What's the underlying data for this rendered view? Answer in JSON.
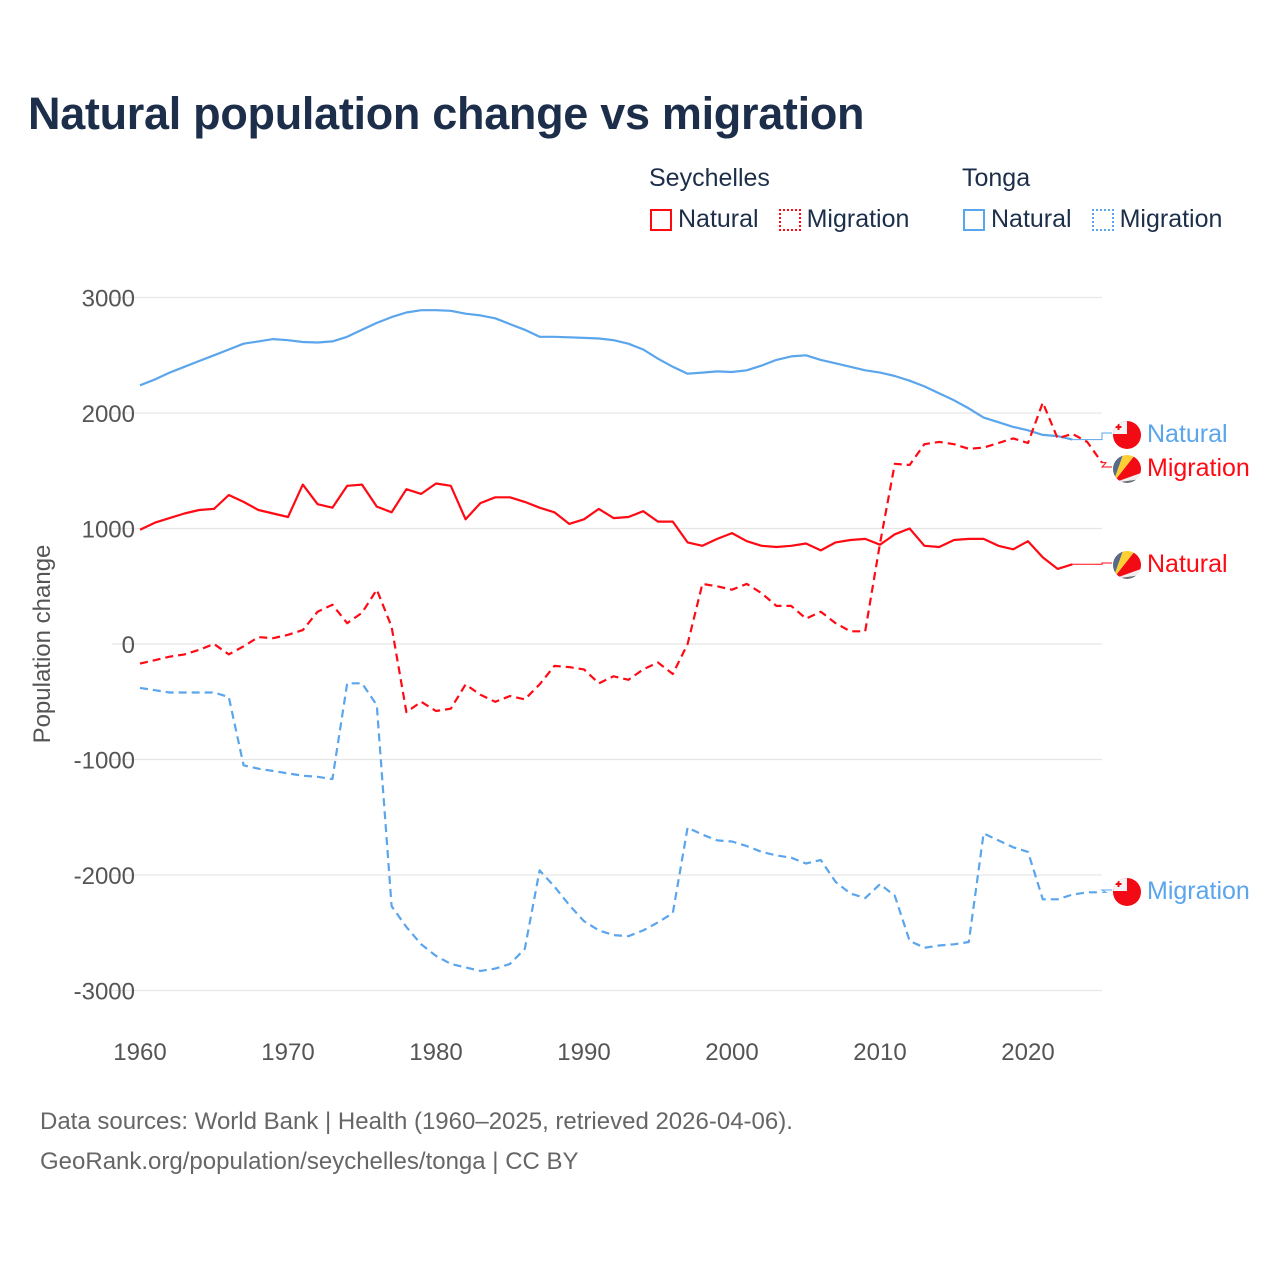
{
  "title": "Natural population change vs migration",
  "legend": {
    "groups": [
      {
        "name": "Seychelles",
        "items": [
          "Natural",
          "Migration"
        ]
      },
      {
        "name": "Tonga",
        "items": [
          "Natural",
          "Migration"
        ]
      }
    ]
  },
  "colors": {
    "seychelles": "#ff0a14",
    "tonga": "#5aa5ec",
    "title": "#1c2e4a"
  },
  "source": {
    "line1": "Data sources: World Bank | Health (1960–2025, retrieved 2026-04-06).",
    "line2": "GeoRank.org/population/seychelles/tonga | CC BY"
  },
  "chart_data": {
    "type": "line",
    "title": "Natural population change vs migration",
    "xlabel": "",
    "ylabel": "Population change",
    "xlim": [
      1960,
      2025
    ],
    "ylim": [
      -3000,
      3000
    ],
    "xticks": [
      1960,
      1970,
      1980,
      1990,
      2000,
      2010,
      2020
    ],
    "yticks": [
      3000,
      2000,
      1000,
      0,
      -1000,
      -2000,
      -3000
    ],
    "grid": true,
    "legend_position": "top-right",
    "x_start": 1960,
    "series": [
      {
        "name": "Tonga Natural",
        "country": "Tonga",
        "kind": "Natural",
        "color": "#5aa5ec",
        "dash": false,
        "end_label": "Natural",
        "values": [
          2240,
          2290,
          2350,
          2400,
          2450,
          2500,
          2550,
          2600,
          2620,
          2640,
          2630,
          2615,
          2610,
          2620,
          2660,
          2720,
          2780,
          2830,
          2870,
          2890,
          2890,
          2885,
          2860,
          2845,
          2820,
          2770,
          2720,
          2660,
          2660,
          2655,
          2650,
          2645,
          2630,
          2600,
          2550,
          2470,
          2400,
          2340,
          2350,
          2360,
          2355,
          2370,
          2410,
          2460,
          2490,
          2500,
          2460,
          2430,
          2400,
          2370,
          2350,
          2320,
          2280,
          2230,
          2170,
          2110,
          2040,
          1960,
          1920,
          1880,
          1850,
          1810,
          1800,
          1770
        ]
      },
      {
        "name": "Seychelles Migration",
        "country": "Seychelles",
        "kind": "Migration",
        "color": "#ff0a14",
        "dash": true,
        "end_label": "Migration",
        "values": [
          -170,
          -140,
          -110,
          -90,
          -50,
          0,
          -90,
          -20,
          60,
          50,
          80,
          120,
          280,
          340,
          180,
          270,
          470,
          150,
          -590,
          -500,
          -580,
          -560,
          -350,
          -440,
          -500,
          -450,
          -480,
          -350,
          -190,
          -200,
          -220,
          -340,
          -280,
          -310,
          -220,
          -160,
          -260,
          0,
          520,
          500,
          470,
          520,
          440,
          330,
          330,
          220,
          280,
          180,
          110,
          110,
          870,
          1560,
          1550,
          1730,
          1750,
          1730,
          1690,
          1700,
          1740,
          1780,
          1740,
          2090,
          1780,
          1820,
          1750,
          1570
        ]
      },
      {
        "name": "Seychelles Natural",
        "country": "Seychelles",
        "kind": "Natural",
        "color": "#ff0a14",
        "dash": false,
        "end_label": "Natural",
        "values": [
          990,
          1050,
          1090,
          1130,
          1160,
          1170,
          1290,
          1230,
          1160,
          1130,
          1100,
          1380,
          1210,
          1180,
          1370,
          1380,
          1190,
          1140,
          1340,
          1300,
          1390,
          1370,
          1080,
          1220,
          1270,
          1270,
          1230,
          1180,
          1140,
          1040,
          1080,
          1170,
          1090,
          1100,
          1150,
          1060,
          1060,
          880,
          850,
          910,
          960,
          890,
          850,
          840,
          850,
          870,
          810,
          880,
          900,
          910,
          860,
          950,
          1000,
          850,
          840,
          900,
          910,
          910,
          850,
          820,
          890,
          750,
          650,
          690
        ]
      },
      {
        "name": "Tonga Migration",
        "country": "Tonga",
        "kind": "Migration",
        "color": "#5aa5ec",
        "dash": true,
        "end_label": "Migration",
        "values": [
          -380,
          -400,
          -420,
          -420,
          -420,
          -420,
          -460,
          -1050,
          -1080,
          -1100,
          -1120,
          -1140,
          -1150,
          -1170,
          -340,
          -340,
          -530,
          -2270,
          -2450,
          -2600,
          -2700,
          -2770,
          -2800,
          -2830,
          -2810,
          -2770,
          -2640,
          -1960,
          -2100,
          -2260,
          -2400,
          -2480,
          -2520,
          -2530,
          -2480,
          -2410,
          -2330,
          -1590,
          -1650,
          -1700,
          -1710,
          -1750,
          -1800,
          -1830,
          -1850,
          -1900,
          -1870,
          -2060,
          -2160,
          -2200,
          -2080,
          -2180,
          -2570,
          -2630,
          -2610,
          -2600,
          -2580,
          -1640,
          -1700,
          -1760,
          -1800,
          -2210,
          -2210,
          -2170,
          -2150,
          -2150
        ]
      }
    ]
  }
}
